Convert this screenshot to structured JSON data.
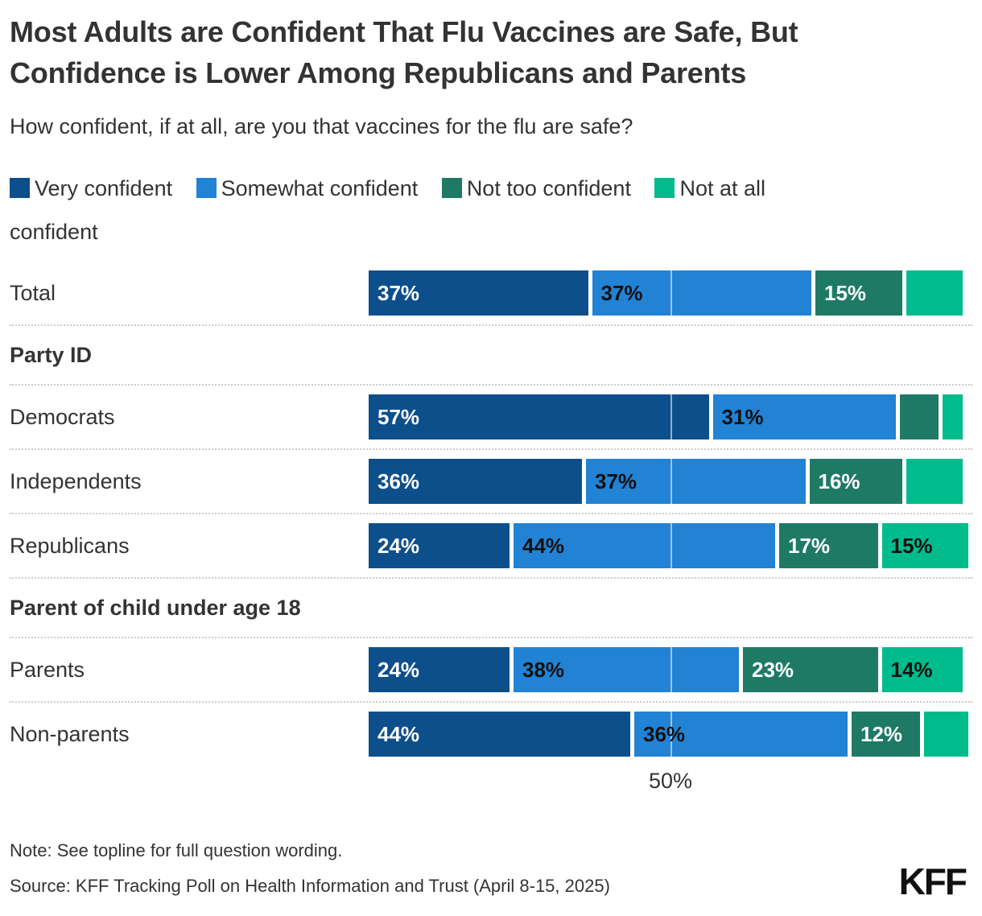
{
  "chart_data": {
    "type": "bar",
    "stacked": true,
    "orientation": "horizontal",
    "title": "Most Adults are Confident That Flu Vaccines are Safe, But Confidence is Lower Among Republicans and Parents",
    "subtitle": "How confident, if at all, are you that vaccines for the flu are safe?",
    "series": [
      {
        "name": "Very confident",
        "color": "#0d4f8b",
        "label_text_color": "#ffffff"
      },
      {
        "name": "Somewhat confident",
        "color": "#2282d4",
        "label_text_color": "#111111"
      },
      {
        "name": "Not too confident",
        "color": "#1f7a65",
        "label_text_color": "#ffffff"
      },
      {
        "name": "Not at all confident",
        "color": "#00bb8b",
        "label_text_color": "#111111"
      }
    ],
    "axis": {
      "tick_label": "50%",
      "tick_value": 50,
      "max": 100
    },
    "legend_position": "top",
    "grid": "single 50% white gridline over bars",
    "rows": [
      {
        "kind": "bar",
        "label": "Total",
        "values": [
          37,
          37,
          15,
          10
        ],
        "segment_labels": [
          "37%",
          "37%",
          "15%",
          ""
        ]
      },
      {
        "kind": "section",
        "label": "Party ID"
      },
      {
        "kind": "bar",
        "label": "Democrats",
        "values": [
          57,
          31,
          7,
          4
        ],
        "segment_labels": [
          "57%",
          "31%",
          "",
          ""
        ]
      },
      {
        "kind": "bar",
        "label": "Independents",
        "values": [
          36,
          37,
          16,
          10
        ],
        "segment_labels": [
          "36%",
          "37%",
          "16%",
          ""
        ]
      },
      {
        "kind": "bar",
        "label": "Republicans",
        "values": [
          24,
          44,
          17,
          15
        ],
        "segment_labels": [
          "24%",
          "44%",
          "17%",
          "15%"
        ]
      },
      {
        "kind": "section",
        "label": "Parent of child under age 18"
      },
      {
        "kind": "bar",
        "label": "Parents",
        "values": [
          24,
          38,
          23,
          14
        ],
        "segment_labels": [
          "24%",
          "38%",
          "23%",
          "14%"
        ]
      },
      {
        "kind": "bar",
        "label": "Non-parents",
        "values": [
          44,
          36,
          12,
          8
        ],
        "segment_labels": [
          "44%",
          "36%",
          "12%",
          ""
        ]
      }
    ]
  },
  "footer": {
    "note": "Note: See topline for full question wording.",
    "source": "Source: KFF Tracking Poll on Health Information and Trust (April 8-15, 2025)",
    "logo": "KFF"
  }
}
